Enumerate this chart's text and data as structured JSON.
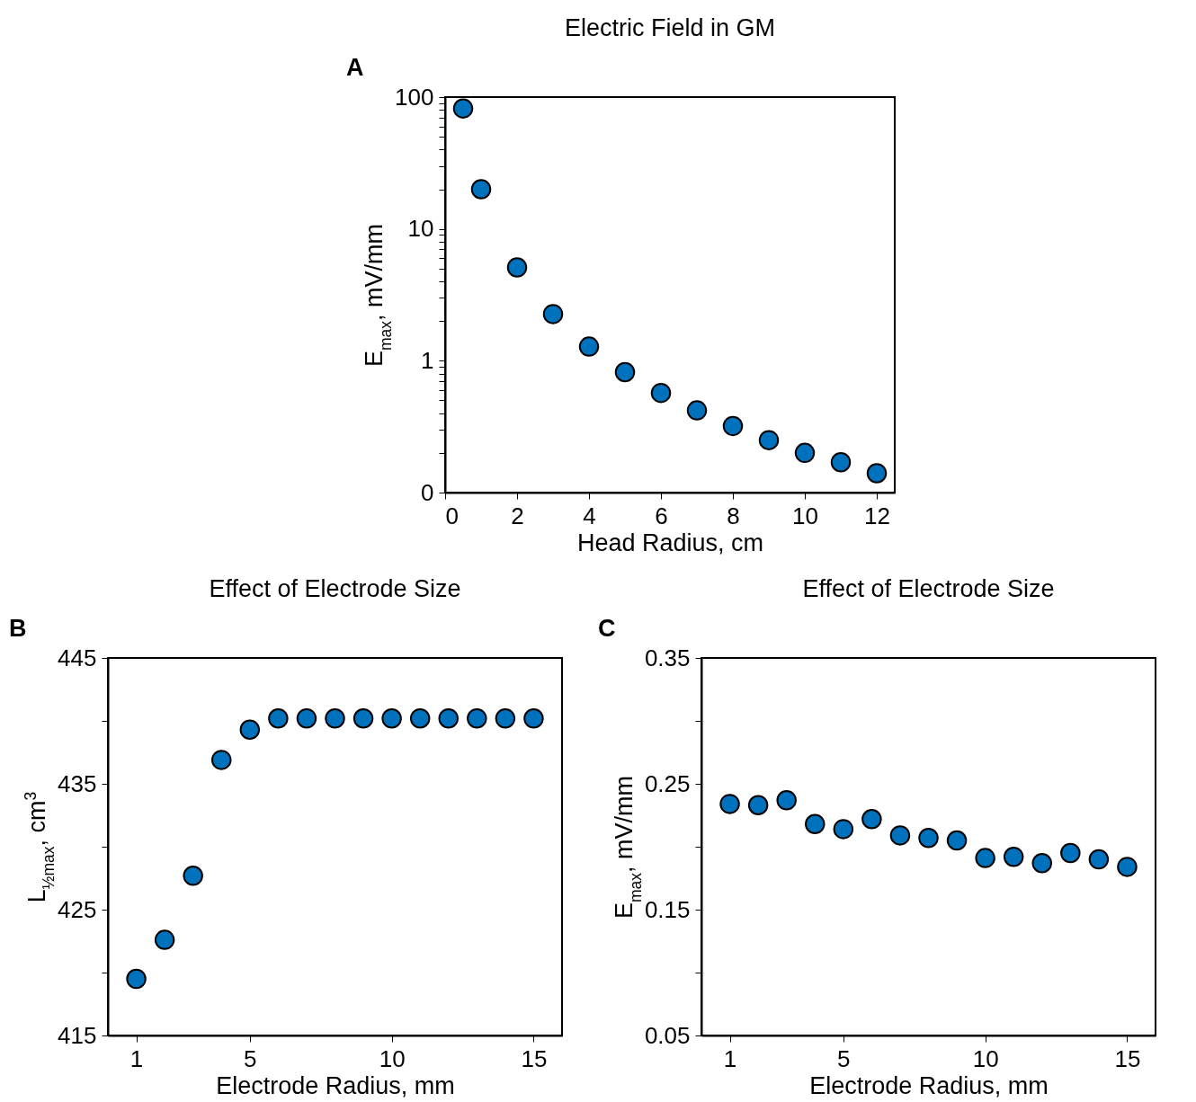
{
  "chart_data": [
    {
      "type": "scatter",
      "title": "Electric Field in GM",
      "annotations": [
        "A"
      ],
      "xlabel": "Head Radius, cm",
      "ylabel": "E$_{max}$, mV/mm",
      "marker": "circle",
      "log": "y",
      "x": [
        0.5,
        1,
        2,
        3,
        4,
        5,
        6,
        7,
        8,
        9,
        10,
        11,
        12
      ],
      "series": [
        {
          "color": "#0072bd",
          "values": [
            82,
            20,
            5.1,
            2.26,
            1.28,
            0.82,
            0.57,
            0.42,
            0.32,
            0.25,
            0.2,
            0.17,
            0.14
          ]
        }
      ],
      "xlim": [
        0,
        12.5
      ],
      "xticks": [
        0,
        2,
        4,
        6,
        8,
        10,
        12
      ],
      "ylim": [
        0.1,
        100
      ],
      "yticks": [
        {
          "value": 0.1,
          "label": "0"
        },
        {
          "value": 0.2,
          "label": null
        },
        {
          "value": 0.3,
          "label": null
        },
        {
          "value": 0.4,
          "label": null
        },
        {
          "value": 0.5,
          "label": null
        },
        {
          "value": 0.6,
          "label": null
        },
        {
          "value": 0.7,
          "label": null
        },
        {
          "value": 0.8,
          "label": null
        },
        {
          "value": 0.9,
          "label": null
        },
        1,
        {
          "value": 2,
          "label": null
        },
        {
          "value": 3,
          "label": null
        },
        {
          "value": 4,
          "label": null
        },
        {
          "value": 5,
          "label": null
        },
        {
          "value": 6,
          "label": null
        },
        {
          "value": 7,
          "label": null
        },
        {
          "value": 8,
          "label": null
        },
        {
          "value": 9,
          "label": null
        },
        10,
        {
          "value": 20,
          "label": null
        },
        {
          "value": 30,
          "label": null
        },
        {
          "value": 40,
          "label": null
        },
        {
          "value": 50,
          "label": null
        },
        {
          "value": 60,
          "label": null
        },
        {
          "value": 70,
          "label": null
        },
        {
          "value": 80,
          "label": null
        },
        {
          "value": 90,
          "label": null
        },
        100
      ]
    },
    {
      "type": "scatter",
      "title": "Effect of Electrode Size",
      "annotations": [
        "B"
      ],
      "xlabel": "Electrode Radius, mm",
      "ylabel": "L$_{½max}$, cm$^{3}$",
      "marker": "circle",
      "x": [
        1,
        2,
        3,
        4,
        5,
        6,
        7,
        8,
        9,
        10,
        11,
        12,
        13,
        14,
        15
      ],
      "series": [
        {
          "color": "#0072bd",
          "values": [
            419.5,
            422.6,
            427.7,
            436.9,
            439.3,
            440.2,
            440.2,
            440.2,
            440.2,
            440.2,
            440.2,
            440.2,
            440.2,
            440.2,
            440.2
          ]
        }
      ],
      "xlim": [
        0,
        16
      ],
      "xticks": [
        1,
        5,
        10,
        15
      ],
      "ylim": [
        415,
        445
      ],
      "yticks": [
        415,
        {
          "value": 420,
          "label": null
        },
        425,
        {
          "value": 430,
          "label": null
        },
        435,
        {
          "value": 440,
          "label": null
        },
        445
      ]
    },
    {
      "type": "scatter",
      "title": "Effect of Electrode Size",
      "annotations": [
        "C"
      ],
      "xlabel": "Electrode Radius, mm",
      "ylabel": "E$_{max}$, mV/mm",
      "marker": "circle",
      "x": [
        1,
        2,
        3,
        4,
        5,
        6,
        7,
        8,
        9,
        10,
        11,
        12,
        13,
        14,
        15
      ],
      "series": [
        {
          "color": "#0072bd",
          "values": [
            0.234,
            0.233,
            0.237,
            0.218,
            0.214,
            0.222,
            0.209,
            0.207,
            0.205,
            0.191,
            0.192,
            0.187,
            0.195,
            0.19,
            0.184
          ]
        }
      ],
      "xlim": [
        0,
        16
      ],
      "xticks": [
        1,
        5,
        10,
        15
      ],
      "ylim": [
        0.05,
        0.35
      ],
      "yticks": [
        0.05,
        {
          "value": 0.1,
          "label": null
        },
        0.15,
        {
          "value": 0.2,
          "label": null
        },
        0.25,
        {
          "value": 0.3,
          "label": null
        },
        0.35
      ]
    }
  ]
}
